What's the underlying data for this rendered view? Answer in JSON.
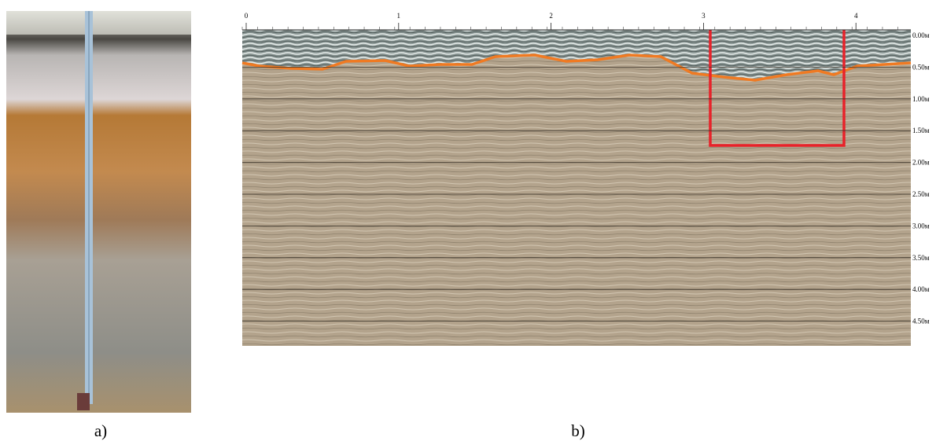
{
  "panels": {
    "a": {
      "caption": "a)"
    },
    "b": {
      "caption": "b)"
    }
  },
  "radargram": {
    "distance_ticks": [
      0,
      1,
      2,
      3,
      4
    ],
    "depth_labels": [
      "0.00м",
      "0.50м",
      "1.00м",
      "1.50м",
      "2.00м",
      "2.50м",
      "3.00м",
      "3.50м",
      "4.00м",
      "4.50м"
    ]
  }
}
